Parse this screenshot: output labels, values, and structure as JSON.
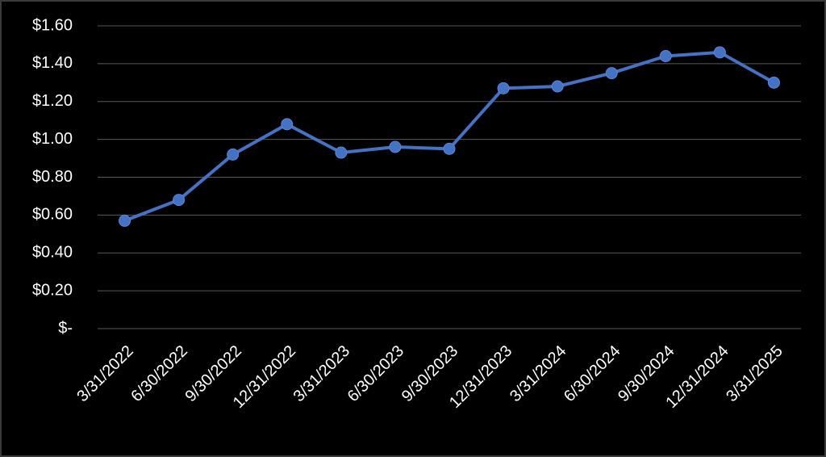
{
  "chart_data": {
    "type": "line",
    "categories": [
      "3/31/2022",
      "6/30/2022",
      "9/30/2022",
      "12/31/2022",
      "3/31/2023",
      "6/30/2023",
      "9/30/2023",
      "12/31/2023",
      "3/31/2024",
      "6/30/2024",
      "9/30/2024",
      "12/31/2024",
      "3/31/2025"
    ],
    "values": [
      0.57,
      0.68,
      0.92,
      1.08,
      0.93,
      0.96,
      0.95,
      1.27,
      1.28,
      1.35,
      1.44,
      1.46,
      1.3
    ],
    "color": "#4472c4",
    "ylim": [
      0,
      1.6
    ],
    "yticks": [
      {
        "value": 0,
        "label": "$-"
      },
      {
        "value": 0.2,
        "label": "$0.20"
      },
      {
        "value": 0.4,
        "label": "$0.40"
      },
      {
        "value": 0.6,
        "label": "$0.60"
      },
      {
        "value": 0.8,
        "label": "$0.80"
      },
      {
        "value": 1.0,
        "label": "$1.00"
      },
      {
        "value": 1.2,
        "label": "$1.20"
      },
      {
        "value": 1.4,
        "label": "$1.40"
      },
      {
        "value": 1.6,
        "label": "$1.60"
      }
    ],
    "grid": true
  }
}
